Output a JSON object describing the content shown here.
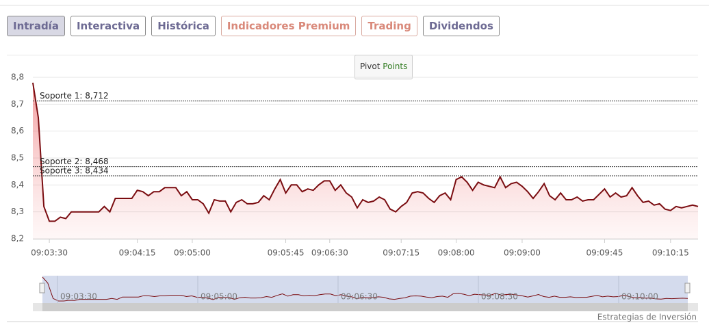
{
  "tabs": [
    "Intradía",
    "Interactiva",
    "Histórica",
    "Indicadores Premium",
    "Trading",
    "Dividendos"
  ],
  "pivot_button": [
    "Pivot",
    "Points"
  ],
  "chart_data": {
    "type": "line",
    "categories": [
      null,
      null,
      null,
      "09:03:30",
      null,
      null,
      null,
      null,
      null,
      null,
      null,
      null,
      null,
      null,
      null,
      null,
      null,
      null,
      null,
      "09:04:15",
      null,
      null,
      null,
      null,
      null,
      null,
      null,
      null,
      null,
      "09:05:00",
      null,
      null,
      null,
      null,
      null,
      null,
      null,
      null,
      null,
      null,
      null,
      null,
      null,
      null,
      null,
      null,
      "09:05:45",
      null,
      null,
      null,
      null,
      null,
      null,
      null,
      "09:06:30",
      null,
      null,
      null,
      null,
      null,
      null,
      null,
      null,
      null,
      null,
      null,
      null,
      "09:07:15",
      null,
      null,
      null,
      null,
      null,
      null,
      null,
      null,
      null,
      "09:08:00",
      null,
      null,
      null,
      null,
      null,
      null,
      null,
      null,
      null,
      null,
      null,
      "09:09:00",
      null,
      null,
      null,
      null,
      null,
      null,
      null,
      null,
      null,
      null,
      null,
      null,
      null,
      null,
      "09:09:45",
      null,
      null,
      null,
      null,
      null,
      null,
      null,
      null,
      null,
      null,
      null,
      "09:10:15",
      null,
      null,
      null,
      null,
      null
    ],
    "series": [
      {
        "color": "#7a0c10",
        "values": [
          8.78,
          8.65,
          8.32,
          8.265,
          8.265,
          8.28,
          8.275,
          8.3,
          8.3,
          8.3,
          8.3,
          8.3,
          8.3,
          8.32,
          8.3,
          8.35,
          8.35,
          8.35,
          8.35,
          8.38,
          8.375,
          8.36,
          8.375,
          8.375,
          8.39,
          8.39,
          8.39,
          8.36,
          8.375,
          8.345,
          8.345,
          8.33,
          8.295,
          8.345,
          8.34,
          8.34,
          8.3,
          8.335,
          8.345,
          8.33,
          8.33,
          8.335,
          8.36,
          8.345,
          8.385,
          8.42,
          8.37,
          8.4,
          8.4,
          8.375,
          8.385,
          8.38,
          8.4,
          8.415,
          8.415,
          8.38,
          8.4,
          8.37,
          8.355,
          8.315,
          8.345,
          8.335,
          8.34,
          8.355,
          8.345,
          8.31,
          8.3,
          8.32,
          8.335,
          8.37,
          8.375,
          8.37,
          8.35,
          8.335,
          8.36,
          8.37,
          8.345,
          8.42,
          8.43,
          8.41,
          8.38,
          8.41,
          8.4,
          8.395,
          8.39,
          8.43,
          8.39,
          8.405,
          8.41,
          8.395,
          8.375,
          8.35,
          8.375,
          8.405,
          8.36,
          8.345,
          8.37,
          8.345,
          8.345,
          8.355,
          8.34,
          8.345,
          8.345,
          8.365,
          8.385,
          8.355,
          8.37,
          8.355,
          8.36,
          8.39,
          8.36,
          8.335,
          8.34,
          8.325,
          8.33,
          8.31,
          8.305,
          8.32,
          8.315,
          8.32,
          8.325,
          8.32
        ]
      }
    ],
    "ylim": [
      8.2,
      8.8
    ],
    "yticks": [
      {
        "value": 8.2,
        "label": "8,2"
      },
      {
        "value": 8.3,
        "label": "8,3"
      },
      {
        "value": 8.4,
        "label": "8,4"
      },
      {
        "value": 8.5,
        "label": "8,5"
      },
      {
        "value": 8.6,
        "label": "8,6"
      },
      {
        "value": 8.7,
        "label": "8,7"
      },
      {
        "value": 8.8,
        "label": "8,8"
      }
    ],
    "grid": true,
    "supports": [
      {
        "label": "Soporte 1: 8,712",
        "value": 8.712
      },
      {
        "label": "Soporte 2: 8,468",
        "value": 8.468
      },
      {
        "label": "Soporte 3: 8,434",
        "value": 8.434
      }
    ],
    "navigator_labels": [
      "09:03:30",
      "09:05:00",
      "09:06:30",
      "09:08:30",
      "09:10:00"
    ]
  },
  "credit": "Estrategias de Inversión"
}
